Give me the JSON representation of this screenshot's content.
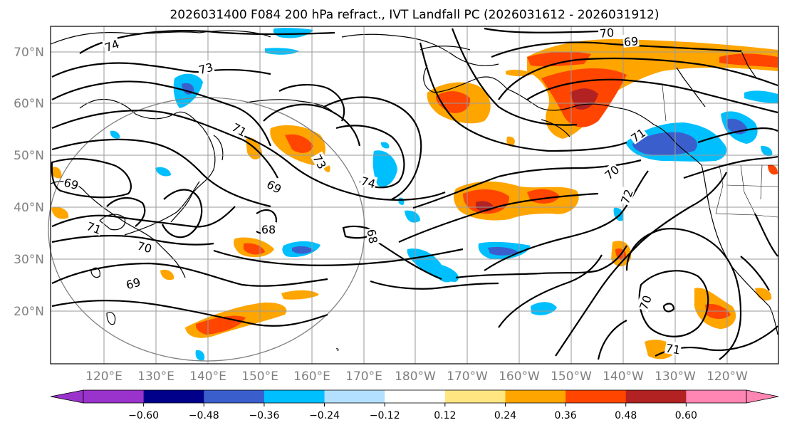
{
  "title": "2026031400 F084 200 hPa refract., IVT Landfall PC (2026031612 - 2026031912)",
  "lat_ticks": [
    "70°N",
    "60°N",
    "50°N",
    "40°N",
    "30°N",
    "20°N"
  ],
  "lon_ticks": [
    "120°E",
    "130°E",
    "140°E",
    "150°E",
    "160°E",
    "170°E",
    "180°W",
    "170°W",
    "160°W",
    "150°W",
    "140°W",
    "130°W",
    "120°W"
  ],
  "colorbar": {
    "ticks": [
      "−0.60",
      "−0.48",
      "−0.36",
      "−0.24",
      "−0.12",
      "0.12",
      "0.24",
      "0.36",
      "0.48",
      "0.60"
    ],
    "colors": [
      "#9933cc",
      "#00008b",
      "#3a5fcd",
      "#00bfff",
      "#b3e0ff",
      "#ffffff",
      "#ffe680",
      "#ffa500",
      "#ff4500",
      "#b22222",
      "#ff85b3"
    ]
  },
  "contour_labels": [
    "74",
    "73",
    "71",
    "69",
    "69",
    "71",
    "70",
    "69",
    "73",
    "74",
    "68",
    "68",
    "69",
    "70",
    "72",
    "70",
    "71",
    "70",
    "71"
  ]
}
